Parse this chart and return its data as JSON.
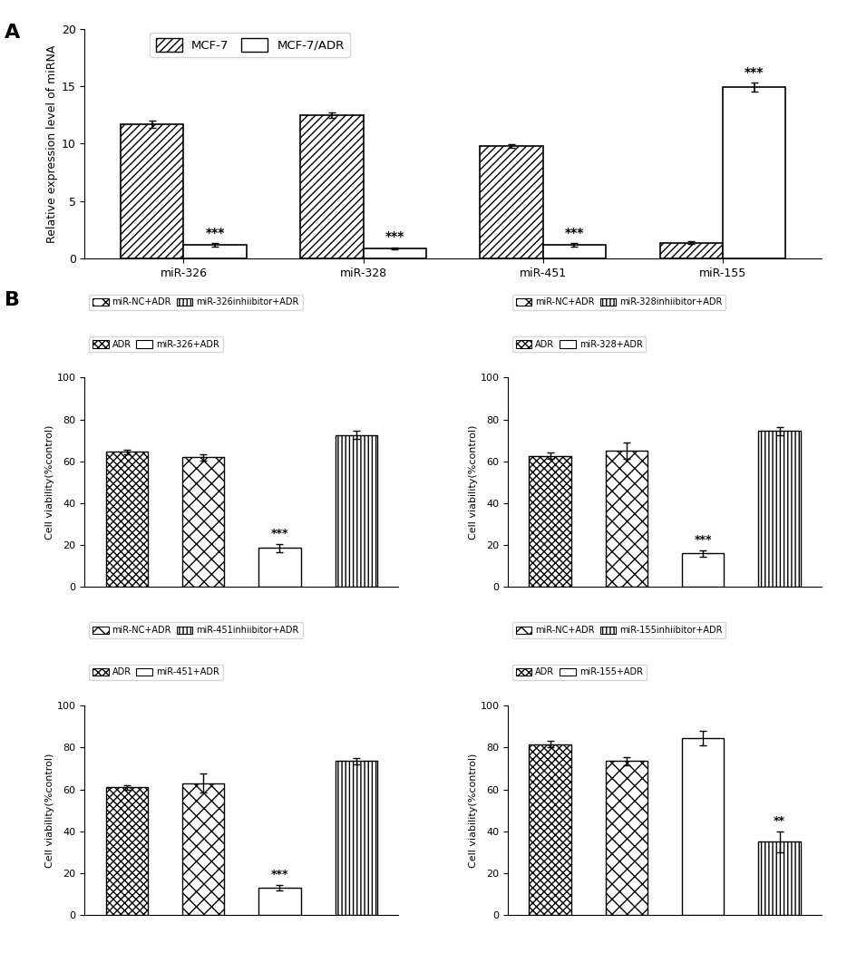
{
  "panel_A": {
    "mirnas": [
      "miR-326",
      "miR-328",
      "miR-451",
      "miR-155"
    ],
    "mcf7_values": [
      11.7,
      12.5,
      9.8,
      1.4
    ],
    "mcf7_errors": [
      0.3,
      0.25,
      0.15,
      0.15
    ],
    "mcf7adr_values": [
      1.2,
      0.9,
      1.2,
      14.9
    ],
    "mcf7adr_errors": [
      0.15,
      0.1,
      0.15,
      0.4
    ],
    "ylabel": "Relative expression level of miRNA",
    "ylim": [
      0,
      20
    ],
    "yticks": [
      0,
      5,
      10,
      15,
      20
    ],
    "legend_mcf7": "MCF-7",
    "legend_mcf7adr": "MCF-7/ADR",
    "sig_adr_low": [
      0,
      1,
      2
    ],
    "sig_adr_high": [
      3
    ]
  },
  "panel_B": {
    "subplots": [
      {
        "title_mirna": "miR-326",
        "bars": [
          "ADR",
          "miR-NC+ADR",
          "miR-326+ADR",
          "miR-326inhiibitor+ADR"
        ],
        "values": [
          64.5,
          62.0,
          18.5,
          72.5
        ],
        "errors": [
          1.0,
          1.5,
          2.0,
          2.0
        ],
        "significance": [
          null,
          null,
          "***",
          null
        ],
        "legend_row1": [
          "ADR",
          "miR-326+ADR"
        ],
        "legend_row2": [
          "miR-NC+ADR",
          "miR-326inhiibitor+ADR"
        ]
      },
      {
        "title_mirna": "miR-328",
        "bars": [
          "ADR",
          "miR-NC+ADR",
          "miR-328+ADR",
          "miR-328inhiibitor+ADR"
        ],
        "values": [
          62.5,
          65.0,
          16.0,
          74.5
        ],
        "errors": [
          1.5,
          4.0,
          1.5,
          2.0
        ],
        "significance": [
          null,
          null,
          "***",
          null
        ],
        "legend_row1": [
          "ADR",
          "miR-328+ADR"
        ],
        "legend_row2": [
          "miR-NC+ADR",
          "miR-328inhiibitor+ADR"
        ]
      },
      {
        "title_mirna": "miR-451",
        "bars": [
          "ADR",
          "miR-NC+ADR",
          "miR-451+ADR",
          "miR-451inhiibitor+ADR"
        ],
        "values": [
          61.0,
          63.0,
          13.0,
          73.5
        ],
        "errors": [
          1.0,
          4.5,
          1.5,
          1.5
        ],
        "significance": [
          null,
          null,
          "***",
          null
        ],
        "legend_row1": [
          "ADR",
          "miR-451+ADR"
        ],
        "legend_row2": [
          "miR-NC+ADR",
          "miR-451inhiibitor+ADR"
        ]
      },
      {
        "title_mirna": "miR-155",
        "bars": [
          "ADR",
          "miR-NC+ADR",
          "miR-155+ADR",
          "miR-155inhiibitor+ADR"
        ],
        "values": [
          81.5,
          73.5,
          84.5,
          35.0
        ],
        "errors": [
          1.5,
          2.0,
          3.5,
          5.0
        ],
        "significance": [
          null,
          null,
          null,
          "**"
        ],
        "legend_row1": [
          "ADR",
          "miR-155+ADR"
        ],
        "legend_row2": [
          "miR-NC+ADR",
          "miR-155inhiibitor+ADR"
        ]
      }
    ],
    "ylabel": "Cell viability(%control)",
    "ylim": [
      0,
      100
    ],
    "yticks": [
      0,
      20,
      40,
      60,
      80,
      100
    ]
  }
}
